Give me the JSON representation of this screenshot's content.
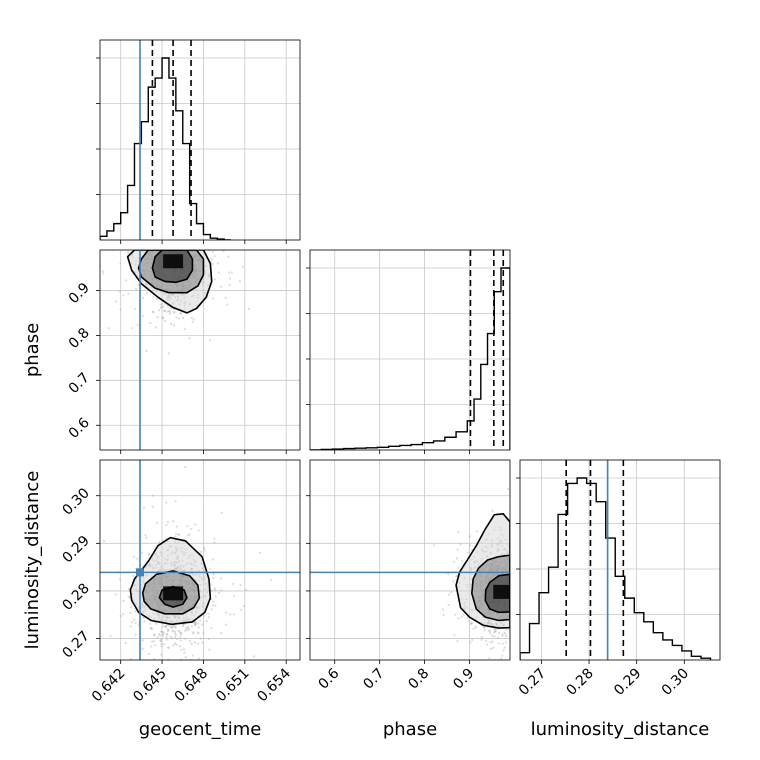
{
  "chart_data": {
    "type": "corner",
    "parameters": [
      "geocent_time",
      "phase",
      "luminosity_distance"
    ],
    "colors": {
      "truth": "#4682b4",
      "hist": "#000000",
      "grid": "#c8c8c8",
      "points": "#9a9a9a"
    },
    "grid": true,
    "truths": {
      "geocent_time": 0.6434,
      "phase": null,
      "luminosity_distance": 0.2839
    },
    "ranges": {
      "geocent_time": [
        0.6405,
        0.655
      ],
      "phase": [
        0.545,
        0.99
      ],
      "luminosity_distance": [
        0.2655,
        0.3075
      ]
    },
    "ticks": {
      "geocent_time": [
        0.642,
        0.645,
        0.648,
        0.651,
        0.654
      ],
      "geocent_time_labels": [
        "0.642",
        "0.645",
        "0.648",
        "0.651",
        "0.654"
      ],
      "phase": [
        0.6,
        0.7,
        0.8,
        0.9
      ],
      "phase_labels": [
        "0.6",
        "0.7",
        "0.8",
        "0.9"
      ],
      "luminosity_distance": [
        0.27,
        0.28,
        0.29,
        0.3
      ],
      "luminosity_distance_labels": [
        "0.27",
        "0.28",
        "0.29",
        "0.30"
      ]
    },
    "quantiles": {
      "geocent_time": [
        0.6443,
        0.6458,
        0.6471
      ],
      "phase": [
        0.902,
        0.954,
        0.975
      ],
      "luminosity_distance": [
        0.2752,
        0.2803,
        0.2872
      ]
    },
    "marginals": {
      "geocent_time": {
        "edges": [
          0.6405,
          0.641,
          0.6415,
          0.642,
          0.6425,
          0.643,
          0.6435,
          0.644,
          0.6445,
          0.645,
          0.6455,
          0.646,
          0.6465,
          0.647,
          0.6475,
          0.648,
          0.6485,
          0.649,
          0.6495,
          0.65
        ],
        "counts": [
          0.02,
          0.05,
          0.09,
          0.15,
          0.3,
          0.53,
          0.65,
          0.84,
          0.89,
          1.0,
          0.89,
          0.71,
          0.53,
          0.2,
          0.09,
          0.03,
          0.01,
          0.005,
          0
        ]
      },
      "phase": {
        "edges": [
          0.545,
          0.57,
          0.595,
          0.62,
          0.645,
          0.67,
          0.695,
          0.72,
          0.745,
          0.77,
          0.795,
          0.82,
          0.845,
          0.87,
          0.895,
          0.91,
          0.925,
          0.94,
          0.955,
          0.97,
          0.99
        ],
        "counts": [
          0,
          0.003,
          0.005,
          0.008,
          0.01,
          0.012,
          0.015,
          0.02,
          0.025,
          0.03,
          0.04,
          0.05,
          0.07,
          0.1,
          0.16,
          0.28,
          0.47,
          0.64,
          0.87,
          1.0
        ]
      },
      "luminosity_distance": {
        "edges": [
          0.2655,
          0.2675,
          0.2695,
          0.2715,
          0.2735,
          0.2755,
          0.2775,
          0.2795,
          0.2815,
          0.2835,
          0.2855,
          0.2875,
          0.2895,
          0.2915,
          0.2935,
          0.2955,
          0.2975,
          0.2995,
          0.3015,
          0.3035,
          0.3055
        ],
        "counts": [
          0.04,
          0.2,
          0.37,
          0.51,
          0.8,
          0.97,
          1.0,
          0.97,
          0.87,
          0.67,
          0.46,
          0.34,
          0.26,
          0.21,
          0.15,
          0.11,
          0.08,
          0.05,
          0.02,
          0.01
        ]
      }
    },
    "joint": [
      {
        "x": "geocent_time",
        "y": "phase",
        "peak": [
          0.6458,
          0.965
        ],
        "contours": [
          [
            [
              0.6445,
              0.93
            ],
            [
              0.6452,
              0.92
            ],
            [
              0.646,
              0.918
            ],
            [
              0.6468,
              0.925
            ],
            [
              0.6472,
              0.945
            ],
            [
              0.6472,
              0.97
            ],
            [
              0.6468,
              0.99
            ],
            [
              0.645,
              0.99
            ],
            [
              0.6445,
              0.975
            ],
            [
              0.6443,
              0.95
            ]
          ],
          [
            [
              0.6435,
              0.93
            ],
            [
              0.6445,
              0.905
            ],
            [
              0.6455,
              0.895
            ],
            [
              0.6468,
              0.895
            ],
            [
              0.6476,
              0.91
            ],
            [
              0.648,
              0.935
            ],
            [
              0.648,
              0.97
            ],
            [
              0.6475,
              0.99
            ],
            [
              0.644,
              0.99
            ],
            [
              0.6435,
              0.97
            ],
            [
              0.6433,
              0.95
            ]
          ],
          [
            [
              0.6425,
              0.975
            ],
            [
              0.6428,
              0.945
            ],
            [
              0.6435,
              0.915
            ],
            [
              0.6447,
              0.885
            ],
            [
              0.6458,
              0.862
            ],
            [
              0.6468,
              0.85
            ],
            [
              0.6475,
              0.86
            ],
            [
              0.6482,
              0.885
            ],
            [
              0.6486,
              0.92
            ],
            [
              0.6485,
              0.96
            ],
            [
              0.648,
              0.99
            ],
            [
              0.643,
              0.99
            ]
          ]
        ]
      },
      {
        "x": "geocent_time",
        "y": "luminosity_distance",
        "peak": [
          0.6458,
          0.2795
        ],
        "contours": [
          [
            [
              0.6452,
              0.2772
            ],
            [
              0.6458,
              0.2766
            ],
            [
              0.6465,
              0.2772
            ],
            [
              0.6468,
              0.2786
            ],
            [
              0.6466,
              0.2802
            ],
            [
              0.6458,
              0.2809
            ],
            [
              0.645,
              0.2802
            ],
            [
              0.6448,
              0.2786
            ]
          ],
          [
            [
              0.6437,
              0.2778
            ],
            [
              0.6442,
              0.2762
            ],
            [
              0.6452,
              0.2752
            ],
            [
              0.6465,
              0.2752
            ],
            [
              0.6473,
              0.2765
            ],
            [
              0.6477,
              0.2785
            ],
            [
              0.6476,
              0.2812
            ],
            [
              0.647,
              0.2832
            ],
            [
              0.6458,
              0.2842
            ],
            [
              0.6446,
              0.2835
            ],
            [
              0.6438,
              0.2815
            ],
            [
              0.6436,
              0.2796
            ]
          ],
          [
            [
              0.6428,
              0.278
            ],
            [
              0.6433,
              0.2755
            ],
            [
              0.6442,
              0.2738
            ],
            [
              0.6457,
              0.273
            ],
            [
              0.6472,
              0.2735
            ],
            [
              0.6481,
              0.2755
            ],
            [
              0.6485,
              0.2785
            ],
            [
              0.6484,
              0.2825
            ],
            [
              0.6479,
              0.2872
            ],
            [
              0.6467,
              0.2905
            ],
            [
              0.6456,
              0.2912
            ],
            [
              0.6447,
              0.2895
            ],
            [
              0.644,
              0.2862
            ],
            [
              0.643,
              0.2825
            ],
            [
              0.6427,
              0.2802
            ]
          ]
        ]
      },
      {
        "x": "phase",
        "y": "luminosity_distance",
        "peak": [
          0.975,
          0.2798
        ],
        "contours": [
          [
            [
              0.935,
              0.278
            ],
            [
              0.945,
              0.2762
            ],
            [
              0.965,
              0.2755
            ],
            [
              0.99,
              0.2756
            ],
            [
              0.99,
              0.2835
            ],
            [
              0.965,
              0.2832
            ],
            [
              0.945,
              0.2818
            ],
            [
              0.936,
              0.2802
            ]
          ],
          [
            [
              0.905,
              0.2795
            ],
            [
              0.915,
              0.2762
            ],
            [
              0.935,
              0.2745
            ],
            [
              0.965,
              0.2738
            ],
            [
              0.99,
              0.274
            ],
            [
              0.99,
              0.2875
            ],
            [
              0.965,
              0.2872
            ],
            [
              0.94,
              0.2865
            ],
            [
              0.92,
              0.2848
            ],
            [
              0.908,
              0.2825
            ]
          ],
          [
            [
              0.87,
              0.2812
            ],
            [
              0.88,
              0.2765
            ],
            [
              0.9,
              0.2745
            ],
            [
              0.93,
              0.2728
            ],
            [
              0.965,
              0.2722
            ],
            [
              0.99,
              0.2723
            ],
            [
              0.99,
              0.2945
            ],
            [
              0.975,
              0.2962
            ],
            [
              0.955,
              0.296
            ],
            [
              0.935,
              0.293
            ],
            [
              0.915,
              0.2895
            ],
            [
              0.895,
              0.2865
            ],
            [
              0.878,
              0.284
            ]
          ]
        ]
      }
    ]
  }
}
